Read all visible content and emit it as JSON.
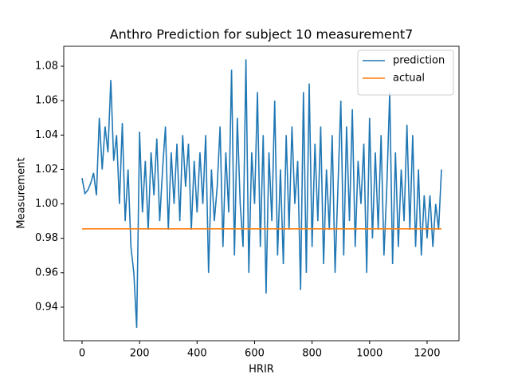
{
  "chart_data": {
    "type": "line",
    "title": "Anthro Prediction for subject 10 measurement7",
    "x_label": "HRIR",
    "y_label": "Measurement",
    "xlim": [
      -63.7,
      1311
    ],
    "ylim": [
      0.9205,
      1.0916
    ],
    "xticks": [
      0,
      200,
      400,
      600,
      800,
      1000,
      1200
    ],
    "yticks": [
      0.94,
      0.96,
      0.98,
      {
        "value": 1,
        "label": "1.00"
      },
      1.02,
      1.04,
      1.06,
      1.08
    ],
    "legend": "upper right",
    "series": [
      {
        "name": "prediction",
        "color": "#1f77b4",
        "x": [
          0,
          10,
          20,
          30,
          40,
          50,
          60,
          70,
          80,
          90,
          100,
          110,
          120,
          130,
          140,
          150,
          160,
          170,
          180,
          190,
          200,
          210,
          220,
          230,
          240,
          250,
          260,
          270,
          280,
          290,
          300,
          310,
          320,
          330,
          340,
          350,
          360,
          370,
          380,
          390,
          400,
          410,
          420,
          430,
          440,
          450,
          460,
          470,
          480,
          490,
          500,
          510,
          520,
          530,
          540,
          550,
          560,
          570,
          580,
          590,
          600,
          610,
          620,
          630,
          640,
          650,
          660,
          670,
          680,
          690,
          700,
          710,
          720,
          730,
          740,
          750,
          760,
          770,
          780,
          790,
          800,
          810,
          820,
          830,
          840,
          850,
          860,
          870,
          880,
          890,
          900,
          910,
          920,
          930,
          940,
          950,
          960,
          970,
          980,
          990,
          1000,
          1010,
          1020,
          1030,
          1040,
          1050,
          1060,
          1070,
          1080,
          1090,
          1100,
          1110,
          1120,
          1130,
          1140,
          1150,
          1160,
          1170,
          1180,
          1190,
          1200,
          1210,
          1220,
          1230,
          1240,
          1250
        ],
        "values": [
          1.015,
          1.006,
          1.008,
          1.012,
          1.018,
          1.005,
          1.05,
          1.02,
          1.045,
          1.03,
          1.072,
          1.025,
          1.04,
          1.0,
          1.047,
          0.99,
          1.02,
          0.975,
          0.96,
          0.928,
          1.042,
          0.995,
          1.025,
          0.985,
          1.03,
          1.005,
          1.038,
          0.99,
          1.02,
          1.045,
          0.985,
          1.03,
          1.0,
          1.035,
          0.99,
          1.04,
          1.01,
          1.035,
          0.985,
          1.025,
          0.995,
          1.03,
          1.0,
          1.04,
          0.96,
          1.02,
          0.99,
          1.01,
          1.045,
          0.975,
          1.03,
          0.995,
          1.078,
          0.97,
          1.05,
          1.0,
          0.975,
          1.084,
          0.96,
          1.03,
          1.0,
          1.065,
          0.975,
          1.04,
          0.948,
          1.03,
          0.99,
          1.06,
          0.97,
          1.02,
          0.965,
          1.04,
          0.985,
          1.045,
          1.0,
          1.025,
          0.95,
          1.065,
          0.96,
          1.07,
          0.975,
          1.035,
          0.99,
          1.045,
          0.965,
          1.02,
          0.985,
          1.04,
          0.96,
          1.01,
          1.06,
          0.97,
          1.045,
          0.99,
          1.055,
          0.975,
          1.025,
          1.0,
          1.035,
          0.96,
          1.05,
          0.98,
          1.03,
          0.985,
          1.04,
          0.97,
          1.01,
          1.065,
          0.965,
          1.03,
          0.975,
          1.02,
          0.99,
          1.046,
          0.985,
          1.04,
          0.975,
          1.02,
          0.97,
          1.005,
          0.98,
          1.005,
          0.975,
          1.0,
          0.985,
          1.02
        ]
      },
      {
        "name": "actual",
        "color": "#ff7f0e",
        "x": [
          0,
          1250
        ],
        "values": [
          0.9855,
          0.9855
        ]
      }
    ]
  }
}
